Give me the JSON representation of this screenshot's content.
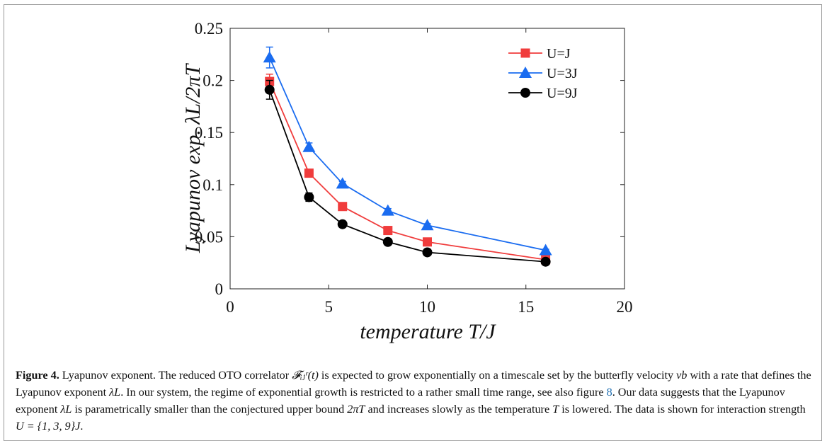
{
  "chart_data": {
    "type": "line",
    "xlabel": "temperature T/J",
    "ylabel": "Lyapunov exp. λL/2πT",
    "xlim": [
      0,
      20
    ],
    "ylim": [
      0,
      0.25
    ],
    "xticks": [
      0,
      5,
      10,
      15,
      20
    ],
    "yticks": [
      0,
      0.05,
      0.1,
      0.15,
      0.2,
      0.25
    ],
    "xtick_labels": [
      "0",
      "5",
      "10",
      "15",
      "20"
    ],
    "ytick_labels": [
      "0",
      "0.05",
      "0.1",
      "0.15",
      "0.2",
      "0.25"
    ],
    "grid": false,
    "legend_position": "top-right",
    "x": [
      2,
      4,
      5.7,
      8,
      10,
      16
    ],
    "series": [
      {
        "name": "U=J",
        "color": "#f03c3c",
        "marker": "square",
        "values": [
          0.199,
          0.111,
          0.079,
          0.056,
          0.045,
          0.028
        ],
        "errors": [
          0.007,
          0.003,
          0.0015,
          0.0015,
          0.0015,
          0.001
        ]
      },
      {
        "name": "U=3J",
        "color": "#1a6cf0",
        "marker": "triangle",
        "values": [
          0.222,
          0.136,
          0.101,
          0.075,
          0.061,
          0.037
        ],
        "errors": [
          0.01,
          0.004,
          0.002,
          0.002,
          0.0015,
          0.001
        ]
      },
      {
        "name": "U=9J",
        "color": "#000000",
        "marker": "circle",
        "values": [
          0.191,
          0.088,
          0.062,
          0.045,
          0.035,
          0.026
        ],
        "errors": [
          0.009,
          0.004,
          0.002,
          0.0015,
          0.0015,
          0.001
        ]
      }
    ]
  },
  "caption": {
    "label": "Figure 4.",
    "part1": " Lyapunov exponent. The reduced OTO correlator ",
    "part2": " is expected to grow exponentially on a timescale set by the butterfly velocity ",
    "part3": " with a rate that defines the Lyapunov exponent ",
    "part4": ". In our system, the regime of exponential growth is restricted to a rather small time range, see also figure ",
    "fig_ref": "8",
    "part5": ". Our data suggests that the Lyapunov exponent ",
    "part6": " is parametrically smaller than the conjectured upper bound ",
    "part7": " and increases slowly as the temperature ",
    "part8": " is lowered. The data is shown for interaction strength ",
    "part9": ".",
    "math_F": "𝓕ᵢⱼʳ(t)",
    "math_vb": "vb",
    "math_lambda": "λL",
    "math_bound": "2πT",
    "math_T": "T",
    "math_U": "U = {1, 3, 9}J"
  }
}
